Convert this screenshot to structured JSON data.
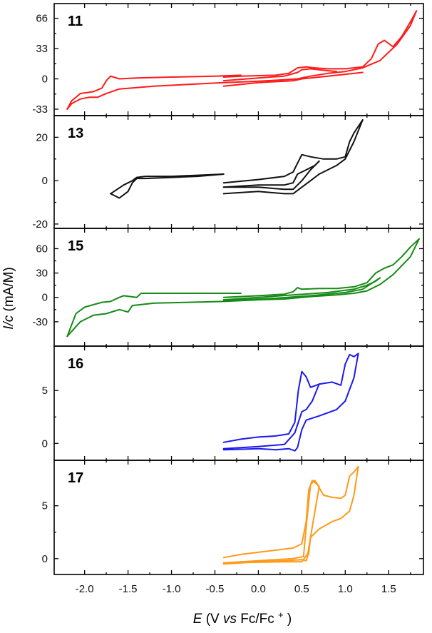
{
  "chart_data": {
    "type": "line",
    "shared_x": {
      "label_italic": "E",
      "label_pre": "(V ",
      "label_vs": "vs",
      "label_post": " Fc/Fc",
      "label_sup": "+",
      "label_close": ")",
      "range": [
        -2.35,
        1.9
      ],
      "ticks": [
        -2.0,
        -1.5,
        -1.0,
        -0.5,
        0.0,
        0.5,
        1.0,
        1.5
      ],
      "tick_labels": [
        "-2.0",
        "-1.5",
        "-1.0",
        "-0.5",
        "0.0",
        "0.5",
        "1.0",
        "1.5"
      ]
    },
    "shared_y": {
      "label_italic": "I/c",
      "label_rest": " (mA/M)"
    },
    "panels": [
      {
        "label": "11",
        "color": "#ff1a1a",
        "ylim": [
          -40,
          82
        ],
        "yticks": [
          -33,
          0,
          33,
          66
        ],
        "ytick_labels": [
          "-33",
          "0",
          "33",
          "66"
        ],
        "series": [
          {
            "x": [
              -0.4,
              -0.2,
              0.0,
              0.2,
              0.35,
              0.45,
              0.55,
              0.65,
              0.8,
              1.0,
              1.2,
              1.3,
              1.38,
              1.45,
              1.55,
              1.65,
              1.75,
              1.82
            ],
            "y": [
              2,
              3,
              3.5,
              4,
              6,
              12,
              13,
              12,
              11,
              11,
              13,
              22,
              38,
              42,
              35,
              46,
              62,
              74
            ]
          },
          {
            "x": [
              1.82,
              1.75,
              1.6,
              1.4,
              1.2,
              1.0,
              0.8,
              0.6,
              0.45,
              0.3,
              0.1,
              -0.1,
              -0.4,
              -0.8,
              -1.2,
              -1.6,
              -1.75,
              -1.85,
              -1.95,
              -2.05,
              -2.15,
              -2.2
            ],
            "y": [
              74,
              58,
              38,
              20,
              12,
              8,
              6,
              3,
              0,
              -1,
              -2,
              -3,
              -4,
              -6,
              -8,
              -11,
              -16,
              -20,
              -20,
              -22,
              -27,
              -33
            ]
          },
          {
            "x": [
              -2.2,
              -2.15,
              -2.05,
              -1.9,
              -1.8,
              -1.75,
              -1.7,
              -1.6,
              -1.4,
              -1.0,
              -0.5,
              -0.2
            ],
            "y": [
              -33,
              -24,
              -16,
              -14,
              -10,
              -2,
              3,
              0,
              1,
              2,
              3,
              4
            ]
          },
          {
            "x": [
              -0.4,
              0.0,
              0.3,
              0.45,
              0.5,
              0.6,
              0.7,
              0.9
            ],
            "y": [
              -2,
              1,
              3,
              7,
              10,
              11,
              10,
              8
            ]
          },
          {
            "x": [
              -0.4,
              0.0,
              0.4,
              0.5,
              0.6,
              0.8,
              1.0,
              1.2
            ],
            "y": [
              -8,
              -4,
              -2,
              0,
              1,
              3,
              5,
              7
            ]
          }
        ]
      },
      {
        "label": "13",
        "color": "#111111",
        "ylim": [
          -22,
          30
        ],
        "yticks": [
          -20,
          0,
          20
        ],
        "ytick_labels": [
          "-20",
          "0",
          "20"
        ],
        "series": [
          {
            "x": [
              -1.7,
              -1.6,
              -1.5,
              -1.45,
              -1.4,
              -1.3,
              -1.0,
              -0.7,
              -0.4
            ],
            "y": [
              -6,
              -8,
              -5,
              -1,
              1,
              1,
              1.5,
              2,
              3
            ]
          },
          {
            "x": [
              -1.7,
              -1.55,
              -1.45,
              -1.4,
              -1.3,
              -1.0,
              -0.7,
              -0.4
            ],
            "y": [
              -6,
              -2,
              0,
              1.5,
              2,
              2,
              2.5,
              3
            ]
          },
          {
            "x": [
              -0.4,
              0.0,
              0.3,
              0.4,
              0.45,
              0.5,
              0.6,
              0.75,
              0.9,
              1.0,
              1.05,
              1.1,
              1.15,
              1.2
            ],
            "y": [
              -1,
              0.5,
              2,
              4,
              8,
              12,
              11,
              10,
              10,
              11,
              18,
              22,
              25,
              28
            ]
          },
          {
            "x": [
              1.2,
              1.1,
              1.0,
              0.9,
              0.7,
              0.6,
              0.5,
              0.4,
              0.3,
              0.0,
              -0.4
            ],
            "y": [
              28,
              18,
              10,
              7,
              3,
              0,
              -3,
              -6,
              -6,
              -5,
              -6
            ]
          },
          {
            "x": [
              -0.4,
              0.0,
              0.3,
              0.4,
              0.45,
              0.55,
              0.65,
              0.7
            ],
            "y": [
              -3,
              -2,
              -2,
              -1,
              3,
              5,
              7,
              9
            ]
          },
          {
            "x": [
              0.7,
              0.6,
              0.5,
              0.4,
              0.3,
              0.0,
              -0.4
            ],
            "y": [
              9,
              5,
              0,
              -4,
              -4,
              -3,
              -3
            ]
          }
        ]
      },
      {
        "label": "15",
        "color": "#168a16",
        "ylim": [
          -60,
          85
        ],
        "yticks": [
          -30,
          0,
          30,
          60
        ],
        "ytick_labels": [
          "-30",
          "0",
          "30",
          "60"
        ],
        "series": [
          {
            "x": [
              -0.4,
              0.0,
              0.3,
              0.4,
              0.45,
              0.5,
              0.7,
              0.9,
              1.1,
              1.25,
              1.35,
              1.45,
              1.55,
              1.65,
              1.75,
              1.85
            ],
            "y": [
              0,
              2,
              4,
              7,
              12,
              10,
              11,
              11,
              13,
              18,
              30,
              36,
              40,
              50,
              62,
              72
            ]
          },
          {
            "x": [
              1.85,
              1.75,
              1.55,
              1.4,
              1.25,
              1.1,
              0.9,
              0.6,
              0.3,
              0.0,
              -0.4,
              -0.8,
              -1.2,
              -1.45,
              -1.5,
              -1.6,
              -1.75,
              -1.9,
              -2.05,
              -2.2
            ],
            "y": [
              72,
              50,
              28,
              16,
              8,
              5,
              3,
              1,
              -2,
              -3,
              -5,
              -6,
              -7,
              -10,
              -18,
              -15,
              -20,
              -22,
              -30,
              -48
            ]
          },
          {
            "x": [
              -2.2,
              -2.1,
              -2.0,
              -1.8,
              -1.7,
              -1.6,
              -1.55,
              -1.4,
              -1.35,
              -1.2,
              -0.8,
              -0.2
            ],
            "y": [
              -48,
              -20,
              -12,
              -6,
              -5,
              0,
              2,
              0,
              5,
              5,
              5,
              5
            ]
          },
          {
            "x": [
              -0.4,
              0.0,
              0.4,
              0.8,
              1.1,
              1.25,
              1.35,
              1.4
            ],
            "y": [
              -3,
              0,
              3,
              6,
              10,
              15,
              20,
              24
            ]
          },
          {
            "x": [
              1.4,
              1.2,
              1.0,
              0.6,
              0.2,
              -0.4
            ],
            "y": [
              24,
              10,
              6,
              2,
              -1,
              -4
            ]
          }
        ]
      },
      {
        "label": "16",
        "color": "#1a1aee",
        "ylim": [
          -1.6,
          9.2
        ],
        "yticks": [
          0,
          5
        ],
        "ytick_labels": [
          "0",
          "5"
        ],
        "series": [
          {
            "x": [
              -0.4,
              -0.2,
              0.0,
              0.2,
              0.35,
              0.42,
              0.46,
              0.5,
              0.55,
              0.6,
              0.7
            ],
            "y": [
              0.1,
              0.4,
              0.6,
              0.7,
              0.9,
              2.0,
              5.0,
              6.8,
              6.3,
              5.3,
              5.6
            ]
          },
          {
            "x": [
              0.7,
              0.85,
              0.95,
              1.0,
              1.05,
              1.1,
              1.15
            ],
            "y": [
              5.6,
              5.8,
              5.5,
              7.5,
              8.4,
              8.2,
              8.5
            ]
          },
          {
            "x": [
              1.15,
              1.1,
              1.0,
              0.9,
              0.7,
              0.55,
              0.5,
              0.45,
              0.42,
              0.35,
              0.2,
              0.0,
              -0.4
            ],
            "y": [
              8.5,
              6.2,
              4.0,
              3.2,
              2.6,
              2.2,
              1.3,
              -0.4,
              -0.7,
              -0.5,
              -0.6,
              -0.5,
              -0.6
            ]
          },
          {
            "x": [
              -0.4,
              0.0,
              0.3,
              0.42,
              0.5,
              0.55,
              0.62,
              0.7
            ],
            "y": [
              -0.5,
              -0.3,
              -0.1,
              1.0,
              3.0,
              3.2,
              4.0,
              5.6
            ]
          }
        ]
      },
      {
        "label": "17",
        "color": "#ff9a1a",
        "ylim": [
          -1.5,
          9.3
        ],
        "yticks": [
          0,
          5
        ],
        "ytick_labels": [
          "0",
          "5"
        ],
        "series": [
          {
            "x": [
              -0.4,
              -0.2,
              0.0,
              0.2,
              0.4,
              0.5,
              0.55,
              0.58,
              0.62,
              0.68,
              0.75,
              0.85,
              0.95,
              1.0,
              1.05,
              1.1,
              1.15
            ],
            "y": [
              0.1,
              0.4,
              0.6,
              0.8,
              1.0,
              1.4,
              3.5,
              6.5,
              7.4,
              7.0,
              6.0,
              5.8,
              5.7,
              6.0,
              7.8,
              8.2,
              8.7
            ]
          },
          {
            "x": [
              1.15,
              1.1,
              1.05,
              0.95,
              0.85,
              0.7,
              0.6,
              0.58,
              0.55,
              0.5,
              0.3,
              0.0,
              -0.4
            ],
            "y": [
              8.7,
              6.0,
              4.5,
              3.8,
              3.5,
              2.8,
              2.0,
              0.5,
              -0.2,
              -0.1,
              -0.2,
              -0.3,
              -0.5
            ]
          },
          {
            "x": [
              -0.4,
              0.0,
              0.4,
              0.52,
              0.55,
              0.6,
              0.65,
              0.7
            ],
            "y": [
              -0.4,
              -0.2,
              0.0,
              0.2,
              3.0,
              7.0,
              7.4,
              6.8
            ]
          },
          {
            "x": [
              0.7,
              0.62,
              0.57,
              0.5,
              0.3,
              -0.4
            ],
            "y": [
              6.8,
              3.0,
              0.5,
              -0.3,
              -0.3,
              -0.4
            ]
          }
        ]
      }
    ]
  }
}
